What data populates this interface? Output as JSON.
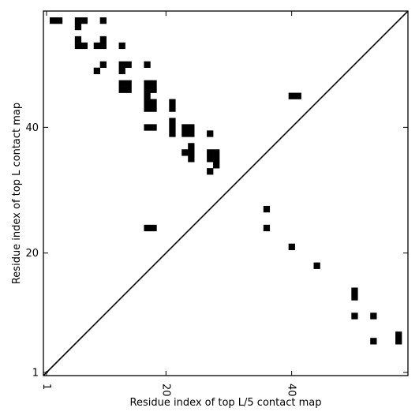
{
  "chart_data": {
    "type": "heatmap",
    "xlabel": "Residue index of top L/5 contact map",
    "ylabel": "Residue index of top L contact map",
    "xlim": [
      0.5,
      58.5
    ],
    "ylim": [
      0.5,
      58.5
    ],
    "x_ticks": [
      {
        "value": 1,
        "label": "1"
      },
      {
        "value": 20,
        "label": "20"
      },
      {
        "value": 40,
        "label": "40"
      }
    ],
    "y_ticks": [
      {
        "value": 1,
        "label": "1"
      },
      {
        "value": 20,
        "label": "20"
      },
      {
        "value": 40,
        "label": "40"
      }
    ],
    "x_tick_rotation": -90,
    "diagonal": true,
    "colors": {
      "contact": "#000000",
      "background": "#ffffff",
      "line": "#000000"
    },
    "upper_triangle_contacts": [
      [
        2,
        57
      ],
      [
        3,
        57
      ],
      [
        6,
        57
      ],
      [
        7,
        57
      ],
      [
        6,
        56
      ],
      [
        10,
        57
      ],
      [
        6,
        54
      ],
      [
        6,
        53
      ],
      [
        7,
        53
      ],
      [
        9,
        53
      ],
      [
        10,
        53
      ],
      [
        10,
        54
      ],
      [
        13,
        53
      ],
      [
        13,
        50
      ],
      [
        14,
        50
      ],
      [
        13,
        49
      ],
      [
        10,
        50
      ],
      [
        9,
        49
      ],
      [
        17,
        50
      ],
      [
        13,
        47
      ],
      [
        14,
        47
      ],
      [
        13,
        46
      ],
      [
        14,
        46
      ],
      [
        17,
        47
      ],
      [
        18,
        47
      ],
      [
        17,
        46
      ],
      [
        18,
        46
      ],
      [
        17,
        45
      ],
      [
        17,
        44
      ],
      [
        18,
        44
      ],
      [
        17,
        43
      ],
      [
        18,
        43
      ],
      [
        21,
        44
      ],
      [
        21,
        43
      ],
      [
        17,
        40
      ],
      [
        18,
        40
      ],
      [
        21,
        41
      ],
      [
        21,
        40
      ],
      [
        21,
        39
      ],
      [
        23,
        40
      ],
      [
        24,
        40
      ],
      [
        23,
        39
      ],
      [
        24,
        39
      ],
      [
        27,
        39
      ],
      [
        24,
        37
      ],
      [
        23,
        36
      ],
      [
        24,
        36
      ],
      [
        24,
        35
      ],
      [
        27,
        36
      ],
      [
        28,
        36
      ],
      [
        27,
        35
      ],
      [
        28,
        35
      ],
      [
        28,
        34
      ],
      [
        27,
        33
      ],
      [
        17,
        24
      ],
      [
        18,
        24
      ],
      [
        40,
        45
      ],
      [
        41,
        45
      ]
    ],
    "lower_triangle_contacts": [
      [
        36,
        27
      ],
      [
        36,
        24
      ],
      [
        40,
        21
      ],
      [
        44,
        18
      ],
      [
        50,
        14
      ],
      [
        50,
        13
      ],
      [
        50,
        10
      ],
      [
        53,
        10
      ],
      [
        53,
        6
      ],
      [
        57,
        7
      ],
      [
        57,
        6
      ]
    ]
  }
}
